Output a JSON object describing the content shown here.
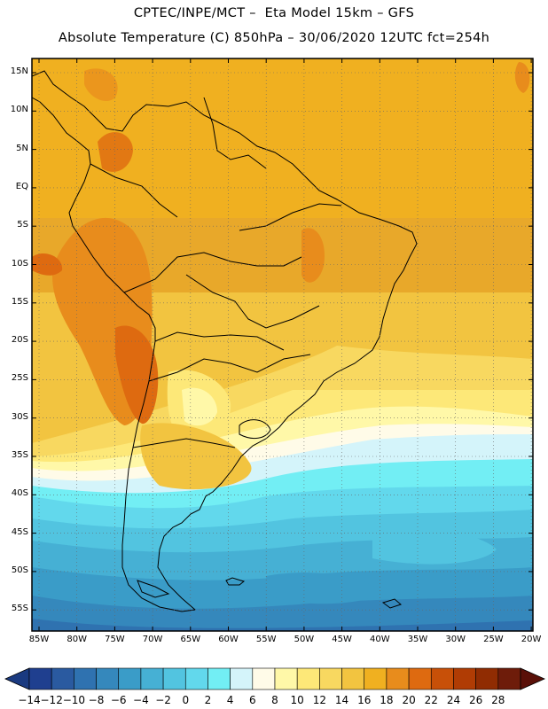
{
  "header": {
    "line1": "CPTEC/INPE/MCT –  Eta Model 15km – GFS",
    "line2": "Absolute Temperature (C) 850hPa – 30/06/2020 12UTC fct=254h"
  },
  "map": {
    "lat_labels": [
      "15N",
      "10N",
      "5N",
      "EQ",
      "5S",
      "10S",
      "15S",
      "20S",
      "25S",
      "30S",
      "35S",
      "40S",
      "45S",
      "50S",
      "55S"
    ],
    "lon_labels": [
      "85W",
      "80W",
      "75W",
      "70W",
      "65W",
      "60W",
      "55W",
      "50W",
      "45W",
      "40W",
      "35W",
      "30W",
      "25W",
      "20W"
    ],
    "lat_range": [
      16.5,
      -57.5
    ],
    "lon_range": [
      -86,
      -20
    ],
    "gridlines": true,
    "gridline_style": "dotted"
  },
  "colorbar": {
    "ticks": [
      "-14",
      "-12",
      "-10",
      "-8",
      "-6",
      "-4",
      "-2",
      "0",
      "2",
      "4",
      "6",
      "8",
      "10",
      "12",
      "14",
      "16",
      "18",
      "20",
      "22",
      "24",
      "26",
      "28"
    ],
    "colors": [
      "#1f3f8f",
      "#2a5aa0",
      "#2f72b0",
      "#3588bc",
      "#3a9cc8",
      "#46b0d4",
      "#52c4e0",
      "#62d8ec",
      "#72eef4",
      "#d4f4fa",
      "#fffbe8",
      "#fff8a8",
      "#fde878",
      "#f8d860",
      "#f2c440",
      "#f0b020",
      "#e88c1c",
      "#de6a10",
      "#c85008",
      "#b03c04",
      "#902c02",
      "#6e1c0a"
    ],
    "under_color": "#1a3a80",
    "over_color": "#5a1008"
  }
}
